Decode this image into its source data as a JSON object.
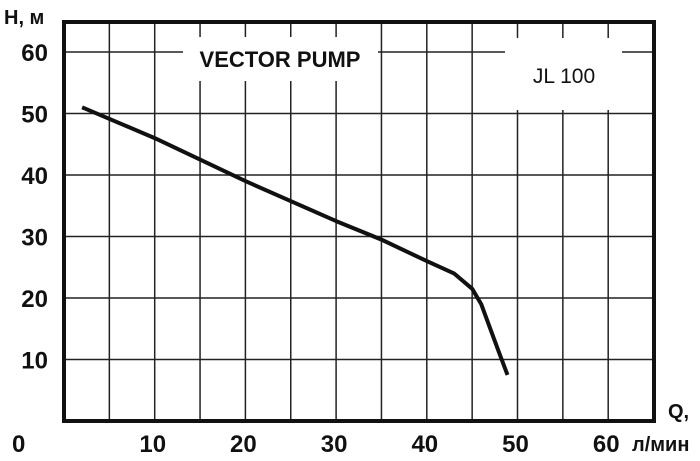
{
  "chart_data": {
    "type": "line",
    "title": "VECTOR PUMP",
    "subtitle": "JL 100",
    "xlabel": "Q, л/мин",
    "xlabel_parts": [
      "Q,",
      "л/мин"
    ],
    "ylabel": "H, м",
    "xlim": [
      0,
      65
    ],
    "ylim": [
      0,
      65
    ],
    "x_ticks": [
      0,
      10,
      20,
      30,
      40,
      50,
      60
    ],
    "y_ticks": [
      10,
      20,
      30,
      40,
      50,
      60
    ],
    "x_grid_step": 5,
    "y_grid_step": 10,
    "grid": true,
    "line_color": "#111111",
    "series": [
      {
        "name": "JL 100",
        "x": [
          2,
          10,
          20,
          30,
          35,
          40,
          43,
          45,
          46,
          47,
          48,
          48.9
        ],
        "y": [
          51,
          46,
          39,
          32.5,
          29.5,
          26,
          24,
          21.5,
          19,
          15,
          11,
          7.5
        ]
      }
    ]
  }
}
